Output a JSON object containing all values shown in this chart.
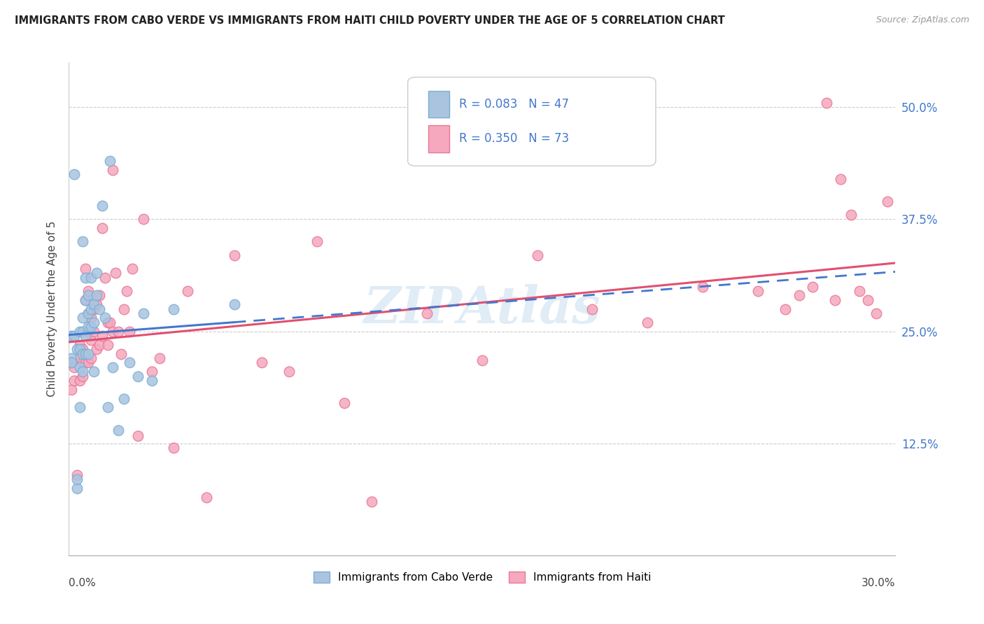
{
  "title": "IMMIGRANTS FROM CABO VERDE VS IMMIGRANTS FROM HAITI CHILD POVERTY UNDER THE AGE OF 5 CORRELATION CHART",
  "source": "Source: ZipAtlas.com",
  "ylabel": "Child Poverty Under the Age of 5",
  "yticks": [
    "12.5%",
    "25.0%",
    "37.5%",
    "50.0%"
  ],
  "ytick_vals": [
    0.125,
    0.25,
    0.375,
    0.5
  ],
  "legend_label1": "Immigrants from Cabo Verde",
  "legend_label2": "Immigrants from Haiti",
  "watermark": "ZIPAtlas",
  "cabo_verde_color": "#aac4e0",
  "haiti_color": "#f5a8be",
  "cabo_verde_edge": "#7aafd4",
  "haiti_edge": "#e87898",
  "cabo_verde_line_color": "#4477cc",
  "haiti_line_color": "#e05070",
  "xlim": [
    0.0,
    0.3
  ],
  "ylim": [
    0.0,
    0.55
  ],
  "cabo_verde_x": [
    0.001,
    0.001,
    0.001,
    0.002,
    0.002,
    0.003,
    0.003,
    0.003,
    0.004,
    0.004,
    0.004,
    0.004,
    0.005,
    0.005,
    0.005,
    0.005,
    0.005,
    0.006,
    0.006,
    0.006,
    0.006,
    0.007,
    0.007,
    0.007,
    0.007,
    0.008,
    0.008,
    0.008,
    0.009,
    0.009,
    0.009,
    0.01,
    0.01,
    0.011,
    0.012,
    0.013,
    0.014,
    0.015,
    0.016,
    0.018,
    0.02,
    0.022,
    0.025,
    0.027,
    0.03,
    0.038,
    0.06
  ],
  "cabo_verde_y": [
    0.245,
    0.22,
    0.215,
    0.425,
    0.245,
    0.075,
    0.23,
    0.085,
    0.25,
    0.23,
    0.21,
    0.165,
    0.35,
    0.265,
    0.25,
    0.225,
    0.205,
    0.31,
    0.285,
    0.245,
    0.225,
    0.29,
    0.27,
    0.255,
    0.225,
    0.31,
    0.275,
    0.255,
    0.28,
    0.26,
    0.205,
    0.315,
    0.29,
    0.275,
    0.39,
    0.265,
    0.165,
    0.44,
    0.21,
    0.14,
    0.175,
    0.215,
    0.2,
    0.27,
    0.195,
    0.275,
    0.28
  ],
  "haiti_x": [
    0.001,
    0.001,
    0.002,
    0.002,
    0.003,
    0.004,
    0.004,
    0.004,
    0.005,
    0.005,
    0.005,
    0.006,
    0.006,
    0.006,
    0.007,
    0.007,
    0.007,
    0.007,
    0.008,
    0.008,
    0.008,
    0.009,
    0.009,
    0.01,
    0.01,
    0.011,
    0.011,
    0.012,
    0.012,
    0.013,
    0.014,
    0.014,
    0.015,
    0.016,
    0.016,
    0.017,
    0.018,
    0.019,
    0.02,
    0.021,
    0.022,
    0.023,
    0.025,
    0.027,
    0.03,
    0.033,
    0.038,
    0.043,
    0.05,
    0.06,
    0.07,
    0.08,
    0.09,
    0.1,
    0.11,
    0.13,
    0.15,
    0.17,
    0.19,
    0.21,
    0.23,
    0.25,
    0.26,
    0.265,
    0.27,
    0.275,
    0.278,
    0.28,
    0.284,
    0.287,
    0.29,
    0.293,
    0.297
  ],
  "haiti_y": [
    0.215,
    0.185,
    0.21,
    0.195,
    0.09,
    0.235,
    0.22,
    0.195,
    0.23,
    0.215,
    0.2,
    0.32,
    0.285,
    0.215,
    0.295,
    0.27,
    0.25,
    0.215,
    0.265,
    0.24,
    0.22,
    0.275,
    0.25,
    0.28,
    0.23,
    0.29,
    0.235,
    0.365,
    0.245,
    0.31,
    0.26,
    0.235,
    0.26,
    0.43,
    0.25,
    0.315,
    0.25,
    0.225,
    0.275,
    0.295,
    0.25,
    0.32,
    0.133,
    0.375,
    0.205,
    0.22,
    0.12,
    0.295,
    0.065,
    0.335,
    0.215,
    0.205,
    0.35,
    0.17,
    0.06,
    0.27,
    0.218,
    0.335,
    0.275,
    0.26,
    0.3,
    0.295,
    0.275,
    0.29,
    0.3,
    0.505,
    0.285,
    0.42,
    0.38,
    0.295,
    0.285,
    0.27,
    0.395
  ]
}
